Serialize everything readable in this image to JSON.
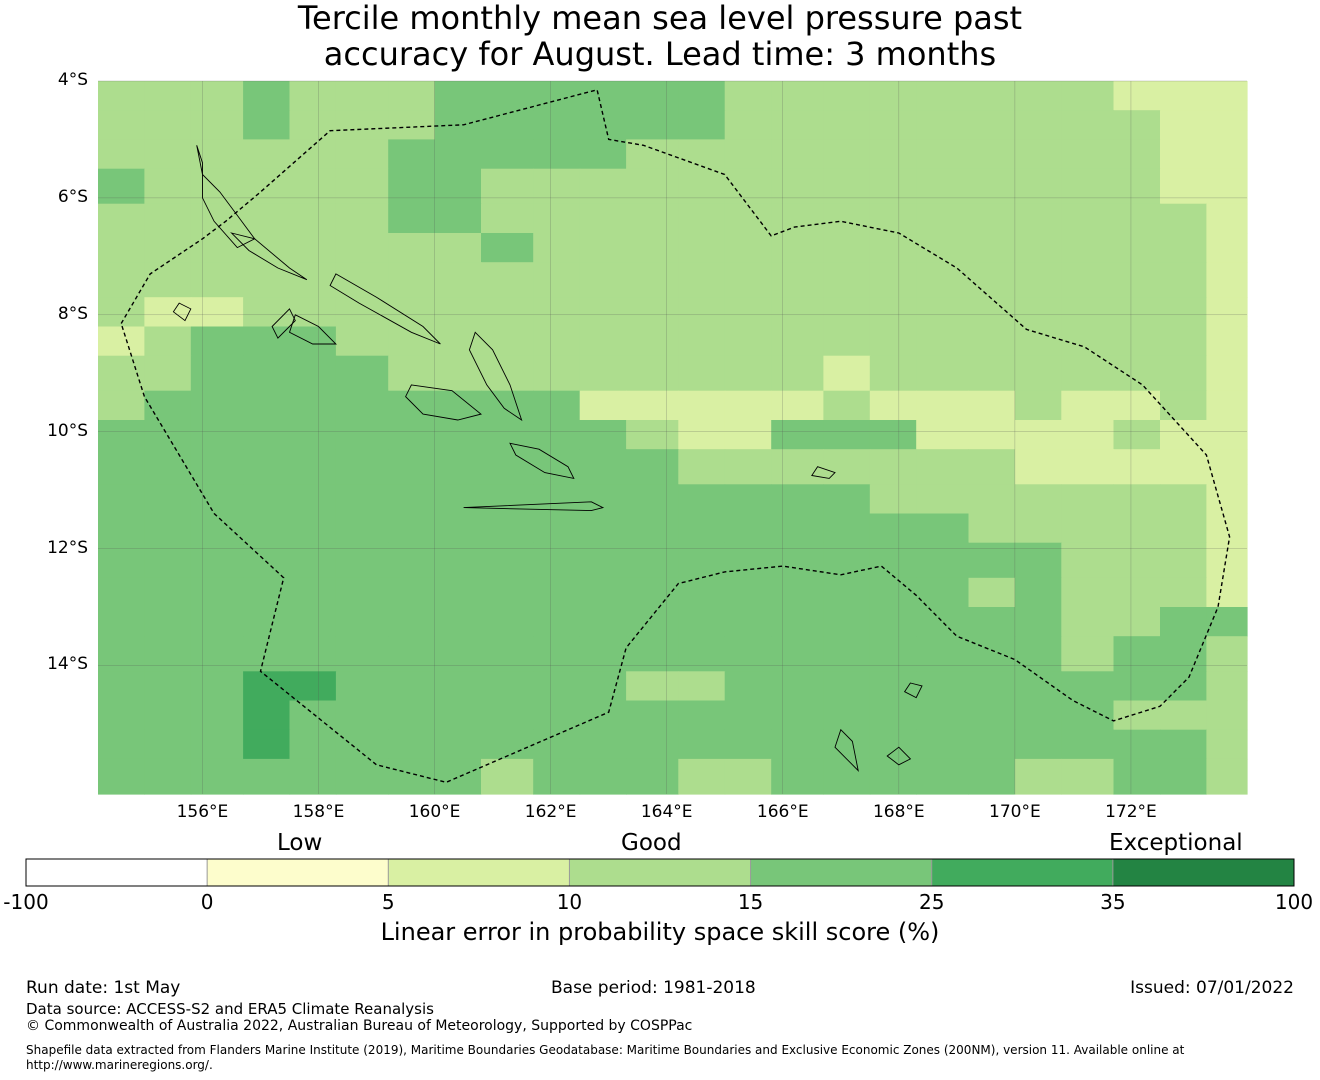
{
  "title": {
    "line1": "Tercile monthly mean sea level pressure past",
    "line2": "accuracy for August. Lead time: 3 months"
  },
  "map": {
    "lon_range": [
      154.2,
      174.0
    ],
    "lat_range": [
      -16.2,
      -4.0
    ],
    "lat_ticks": [
      {
        "value": -4,
        "label": "4°S"
      },
      {
        "value": -6,
        "label": "6°S"
      },
      {
        "value": -8,
        "label": "8°S"
      },
      {
        "value": -10,
        "label": "10°S"
      },
      {
        "value": -12,
        "label": "12°S"
      },
      {
        "value": -14,
        "label": "14°S"
      }
    ],
    "lon_ticks": [
      {
        "value": 156,
        "label": "156°E"
      },
      {
        "value": 158,
        "label": "158°E"
      },
      {
        "value": 160,
        "label": "160°E"
      },
      {
        "value": 162,
        "label": "162°E"
      },
      {
        "value": 164,
        "label": "164°E"
      },
      {
        "value": 166,
        "label": "166°E"
      },
      {
        "value": 168,
        "label": "168°E"
      },
      {
        "value": 170,
        "label": "170°E"
      },
      {
        "value": 172,
        "label": "172°E"
      }
    ],
    "gridlines": true,
    "eez_boundary": [
      [
        154.6,
        -8.15
      ],
      [
        155.1,
        -7.3
      ],
      [
        156.0,
        -6.7
      ],
      [
        156.4,
        -6.4
      ],
      [
        157.0,
        -5.9
      ],
      [
        158.2,
        -4.85
      ],
      [
        160.5,
        -4.75
      ],
      [
        162.8,
        -4.15
      ],
      [
        163.0,
        -5.0
      ],
      [
        163.6,
        -5.1
      ],
      [
        165.0,
        -5.6
      ],
      [
        165.8,
        -6.65
      ],
      [
        166.2,
        -6.5
      ],
      [
        167.0,
        -6.4
      ],
      [
        168.0,
        -6.6
      ],
      [
        169.0,
        -7.2
      ],
      [
        170.2,
        -8.25
      ],
      [
        171.2,
        -8.55
      ],
      [
        172.2,
        -9.2
      ],
      [
        173.3,
        -10.4
      ],
      [
        173.7,
        -11.8
      ],
      [
        173.5,
        -13.0
      ],
      [
        173.0,
        -14.2
      ],
      [
        172.5,
        -14.7
      ],
      [
        171.7,
        -14.95
      ],
      [
        171.0,
        -14.6
      ],
      [
        170.0,
        -13.9
      ],
      [
        169.0,
        -13.5
      ],
      [
        168.3,
        -12.8
      ],
      [
        167.7,
        -12.3
      ],
      [
        167.0,
        -12.45
      ],
      [
        166.0,
        -12.3
      ],
      [
        165.0,
        -12.4
      ],
      [
        164.2,
        -12.6
      ],
      [
        163.3,
        -13.7
      ],
      [
        163.0,
        -14.8
      ],
      [
        160.2,
        -16.0
      ],
      [
        159.0,
        -15.7
      ],
      [
        157.0,
        -14.1
      ],
      [
        157.4,
        -12.5
      ],
      [
        156.2,
        -11.4
      ],
      [
        155.0,
        -9.4
      ],
      [
        154.6,
        -8.15
      ]
    ],
    "skill_grid": {
      "lon_edges": [
        154.2,
        155.0,
        155.8,
        156.7,
        157.5,
        158.3,
        159.2,
        160.0,
        160.8,
        161.7,
        162.5,
        163.3,
        164.2,
        165.0,
        165.8,
        166.7,
        167.5,
        168.3,
        169.2,
        170.0,
        170.8,
        171.7,
        172.5,
        173.3,
        174.0
      ],
      "lat_edges": [
        -4.0,
        -4.5,
        -5.0,
        -5.5,
        -6.1,
        -6.6,
        -7.1,
        -7.7,
        -8.2,
        -8.7,
        -9.3,
        -9.8,
        -10.3,
        -10.9,
        -11.4,
        -11.9,
        -12.5,
        -13.0,
        -13.5,
        -14.1,
        -14.6,
        -15.1,
        -15.6,
        -16.2
      ],
      "rows": [
        [
          3,
          3,
          3,
          4,
          3,
          3,
          3,
          4,
          4,
          4,
          4,
          4,
          4,
          3,
          3,
          3,
          3,
          3,
          3,
          3,
          3,
          2,
          2,
          2
        ],
        [
          3,
          3,
          3,
          4,
          3,
          3,
          3,
          4,
          4,
          4,
          4,
          4,
          4,
          3,
          3,
          3,
          3,
          3,
          3,
          3,
          3,
          3,
          2,
          2
        ],
        [
          3,
          3,
          3,
          3,
          3,
          3,
          4,
          4,
          4,
          4,
          4,
          3,
          3,
          3,
          3,
          3,
          3,
          3,
          3,
          3,
          3,
          3,
          2,
          2
        ],
        [
          4,
          3,
          3,
          3,
          3,
          3,
          4,
          4,
          3,
          3,
          3,
          3,
          3,
          3,
          3,
          3,
          3,
          3,
          3,
          3,
          3,
          3,
          2,
          2
        ],
        [
          3,
          3,
          3,
          3,
          3,
          3,
          4,
          4,
          3,
          3,
          3,
          3,
          3,
          3,
          3,
          3,
          3,
          3,
          3,
          3,
          3,
          3,
          3,
          2
        ],
        [
          3,
          3,
          3,
          3,
          3,
          3,
          3,
          3,
          4,
          3,
          3,
          3,
          3,
          3,
          3,
          3,
          3,
          3,
          3,
          3,
          3,
          3,
          3,
          2
        ],
        [
          3,
          3,
          3,
          3,
          3,
          3,
          3,
          3,
          3,
          3,
          3,
          3,
          3,
          3,
          3,
          3,
          3,
          3,
          3,
          3,
          3,
          3,
          3,
          2
        ],
        [
          3,
          2,
          2,
          3,
          3,
          3,
          3,
          3,
          3,
          3,
          3,
          3,
          3,
          3,
          3,
          3,
          3,
          3,
          3,
          3,
          3,
          3,
          3,
          2
        ],
        [
          2,
          3,
          4,
          4,
          4,
          3,
          3,
          3,
          3,
          3,
          3,
          3,
          3,
          3,
          3,
          3,
          3,
          3,
          3,
          3,
          3,
          3,
          3,
          2
        ],
        [
          3,
          3,
          4,
          4,
          4,
          4,
          3,
          3,
          3,
          3,
          3,
          3,
          3,
          3,
          3,
          2,
          3,
          3,
          3,
          3,
          3,
          3,
          3,
          2
        ],
        [
          3,
          4,
          4,
          4,
          4,
          4,
          4,
          4,
          4,
          4,
          2,
          2,
          2,
          2,
          2,
          3,
          2,
          2,
          2,
          3,
          2,
          2,
          3,
          2
        ],
        [
          4,
          4,
          4,
          4,
          4,
          4,
          4,
          4,
          4,
          4,
          4,
          3,
          2,
          2,
          4,
          4,
          4,
          2,
          2,
          2,
          2,
          3,
          2,
          2
        ],
        [
          4,
          4,
          4,
          4,
          4,
          4,
          4,
          4,
          4,
          4,
          4,
          4,
          3,
          3,
          3,
          3,
          3,
          3,
          3,
          2,
          2,
          2,
          2,
          2
        ],
        [
          4,
          4,
          4,
          4,
          4,
          4,
          4,
          4,
          4,
          4,
          4,
          4,
          4,
          4,
          4,
          4,
          3,
          3,
          3,
          3,
          3,
          3,
          3,
          2
        ],
        [
          4,
          4,
          4,
          4,
          4,
          4,
          4,
          4,
          4,
          4,
          4,
          4,
          4,
          4,
          4,
          4,
          4,
          4,
          3,
          3,
          3,
          3,
          3,
          2
        ],
        [
          4,
          4,
          4,
          4,
          4,
          4,
          4,
          4,
          4,
          4,
          4,
          4,
          4,
          4,
          4,
          4,
          4,
          4,
          4,
          4,
          3,
          3,
          3,
          2
        ],
        [
          4,
          4,
          4,
          4,
          4,
          4,
          4,
          4,
          4,
          4,
          4,
          4,
          4,
          4,
          4,
          4,
          4,
          4,
          3,
          4,
          3,
          3,
          3,
          2
        ],
        [
          4,
          4,
          4,
          4,
          4,
          4,
          4,
          4,
          4,
          4,
          4,
          4,
          4,
          4,
          4,
          4,
          4,
          4,
          4,
          4,
          3,
          3,
          4,
          4
        ],
        [
          4,
          4,
          4,
          4,
          4,
          4,
          4,
          4,
          4,
          4,
          4,
          4,
          4,
          4,
          4,
          4,
          4,
          4,
          4,
          4,
          3,
          4,
          4,
          3
        ],
        [
          4,
          4,
          4,
          5,
          5,
          4,
          4,
          4,
          4,
          4,
          4,
          3,
          3,
          4,
          4,
          4,
          4,
          4,
          4,
          4,
          4,
          4,
          4,
          3
        ],
        [
          4,
          4,
          4,
          5,
          4,
          4,
          4,
          4,
          4,
          4,
          4,
          4,
          4,
          4,
          4,
          4,
          4,
          4,
          4,
          4,
          4,
          3,
          3,
          3
        ],
        [
          4,
          4,
          4,
          5,
          4,
          4,
          4,
          4,
          4,
          4,
          4,
          4,
          4,
          4,
          4,
          4,
          4,
          4,
          4,
          4,
          4,
          4,
          4,
          3
        ],
        [
          4,
          4,
          4,
          4,
          4,
          4,
          4,
          4,
          3,
          4,
          4,
          4,
          3,
          3,
          4,
          4,
          4,
          4,
          4,
          3,
          3,
          4,
          4,
          3
        ]
      ]
    },
    "islands": [
      [
        [
          156.0,
          -5.4
        ],
        [
          155.9,
          -5.1
        ],
        [
          156.0,
          -5.6
        ],
        [
          156.3,
          -5.9
        ],
        [
          156.6,
          -6.3
        ],
        [
          156.9,
          -6.7
        ],
        [
          156.6,
          -6.85
        ],
        [
          156.2,
          -6.4
        ],
        [
          156.0,
          -6.0
        ]
      ],
      [
        [
          156.5,
          -6.6
        ],
        [
          156.9,
          -6.7
        ],
        [
          157.5,
          -7.2
        ],
        [
          157.8,
          -7.4
        ],
        [
          157.3,
          -7.2
        ],
        [
          156.8,
          -6.9
        ]
      ],
      [
        [
          158.3,
          -7.3
        ],
        [
          159.0,
          -7.7
        ],
        [
          159.8,
          -8.2
        ],
        [
          160.1,
          -8.5
        ],
        [
          159.6,
          -8.3
        ],
        [
          158.7,
          -7.8
        ],
        [
          158.2,
          -7.5
        ]
      ],
      [
        [
          160.7,
          -8.3
        ],
        [
          161.0,
          -8.6
        ],
        [
          161.3,
          -9.2
        ],
        [
          161.5,
          -9.8
        ],
        [
          161.2,
          -9.6
        ],
        [
          160.9,
          -9.2
        ],
        [
          160.6,
          -8.6
        ]
      ],
      [
        [
          159.6,
          -9.2
        ],
        [
          160.3,
          -9.3
        ],
        [
          160.8,
          -9.7
        ],
        [
          160.4,
          -9.8
        ],
        [
          159.8,
          -9.7
        ],
        [
          159.5,
          -9.4
        ]
      ],
      [
        [
          161.3,
          -10.2
        ],
        [
          161.8,
          -10.3
        ],
        [
          162.3,
          -10.6
        ],
        [
          162.4,
          -10.8
        ],
        [
          161.9,
          -10.7
        ],
        [
          161.4,
          -10.4
        ]
      ],
      [
        [
          157.6,
          -8.0
        ],
        [
          158.0,
          -8.2
        ],
        [
          158.3,
          -8.5
        ],
        [
          157.9,
          -8.5
        ],
        [
          157.5,
          -8.3
        ]
      ],
      [
        [
          157.2,
          -8.2
        ],
        [
          157.5,
          -7.9
        ],
        [
          157.6,
          -8.1
        ],
        [
          157.3,
          -8.4
        ]
      ],
      [
        [
          155.6,
          -7.8
        ],
        [
          155.8,
          -7.9
        ],
        [
          155.7,
          -8.1
        ],
        [
          155.5,
          -7.95
        ]
      ],
      [
        [
          166.6,
          -10.6
        ],
        [
          166.9,
          -10.7
        ],
        [
          166.8,
          -10.8
        ],
        [
          166.5,
          -10.75
        ]
      ],
      [
        [
          167.0,
          -15.1
        ],
        [
          167.2,
          -15.3
        ],
        [
          167.3,
          -15.8
        ],
        [
          167.1,
          -15.6
        ],
        [
          166.9,
          -15.4
        ]
      ],
      [
        [
          168.0,
          -15.4
        ],
        [
          168.2,
          -15.6
        ],
        [
          168.0,
          -15.7
        ],
        [
          167.8,
          -15.55
        ]
      ],
      [
        [
          168.2,
          -14.3
        ],
        [
          168.4,
          -14.35
        ],
        [
          168.3,
          -14.55
        ],
        [
          168.1,
          -14.45
        ]
      ],
      [
        [
          162.7,
          -11.2
        ],
        [
          162.9,
          -11.3
        ],
        [
          162.7,
          -11.35
        ],
        [
          160.5,
          -11.3
        ]
      ]
    ]
  },
  "colorbar": {
    "categories": [
      {
        "label": "Low"
      },
      {
        "label": "Good"
      },
      {
        "label": "Exceptional"
      }
    ],
    "bins": [
      {
        "color": "#ffffff"
      },
      {
        "color": "#fdfdcc"
      },
      {
        "color": "#d9f0a3"
      },
      {
        "color": "#addd8e"
      },
      {
        "color": "#78c679"
      },
      {
        "color": "#41ab5d"
      },
      {
        "color": "#238443"
      }
    ],
    "ticks": [
      "-100",
      "0",
      "5",
      "10",
      "15",
      "25",
      "35",
      "100"
    ],
    "title": "Linear error in probability space skill score (%)"
  },
  "footer": {
    "run_date": "Run date: 1st May",
    "base_period": "Base period: 1981-2018",
    "issued": "Issued: 07/01/2022",
    "data_source": "Data source: ACCESS-S2 and ERA5 Climate Reanalysis",
    "copyright": "© Commonwealth of Australia 2022, Australian Bureau of Meteorology, Supported by COSPPac",
    "shapefile": "Shapefile data extracted from Flanders Marine Institute (2019), Maritime Boundaries Geodatabase: Maritime Boundaries and Exclusive Economic Zones (200NM), version 11. Available online at http://www.marineregions.org/."
  }
}
